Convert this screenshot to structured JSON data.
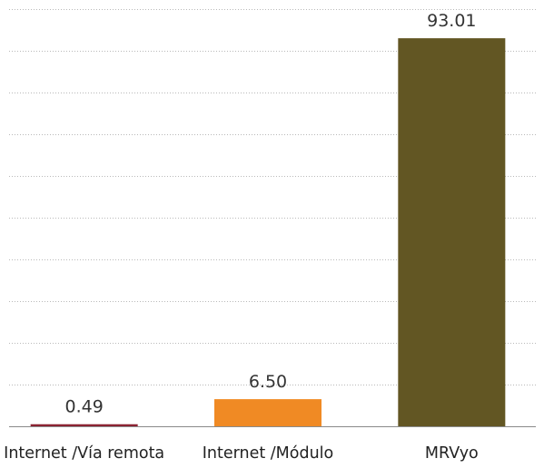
{
  "chart_data": {
    "type": "bar",
    "categories": [
      "Internet /Vía remota",
      "Internet /Módulo",
      "MRVyo"
    ],
    "values": [
      0.49,
      6.5,
      93.01
    ],
    "value_labels": [
      "0.49",
      "6.50",
      "93.01"
    ],
    "colors": [
      "#8b2332",
      "#f08a24",
      "#625623"
    ],
    "ylim": [
      0,
      100
    ],
    "grid": true,
    "legend": "none",
    "title": "",
    "xlabel": "",
    "ylabel": ""
  }
}
